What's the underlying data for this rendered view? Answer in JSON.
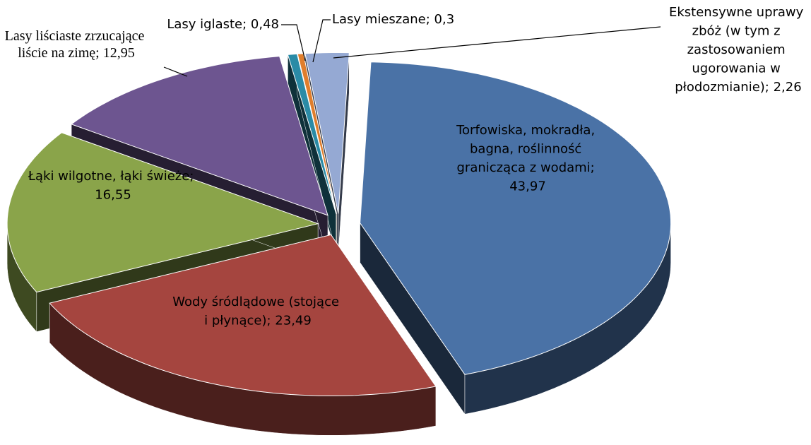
{
  "chart_data": {
    "type": "pie3d",
    "values": [
      43.97,
      23.49,
      16.55,
      12.95,
      0.48,
      0.3,
      2.26
    ],
    "value_labels": [
      "Torfowiska, mokradła, bagna, roślinność granicząca z wodami; 43,97",
      "Wody śródlądowe (stojące i płynące); 23,49",
      "Łąki wilgotne, łąki świeże; 16,55",
      "Lasy liściaste zrzucające liście na zimę; 12,95",
      "Lasy iglaste; 0,48",
      "Lasy mieszane; 0,3",
      "Ekstensywne uprawy zbóż (w tym z zastosowaniem ugorowania w płodozmianie); 2,26"
    ],
    "colors": [
      "#4a72a6",
      "#a5453f",
      "#8aa44a",
      "#6d5590",
      "#2a8ba6",
      "#e07e2c",
      "#95a9d3"
    ]
  }
}
